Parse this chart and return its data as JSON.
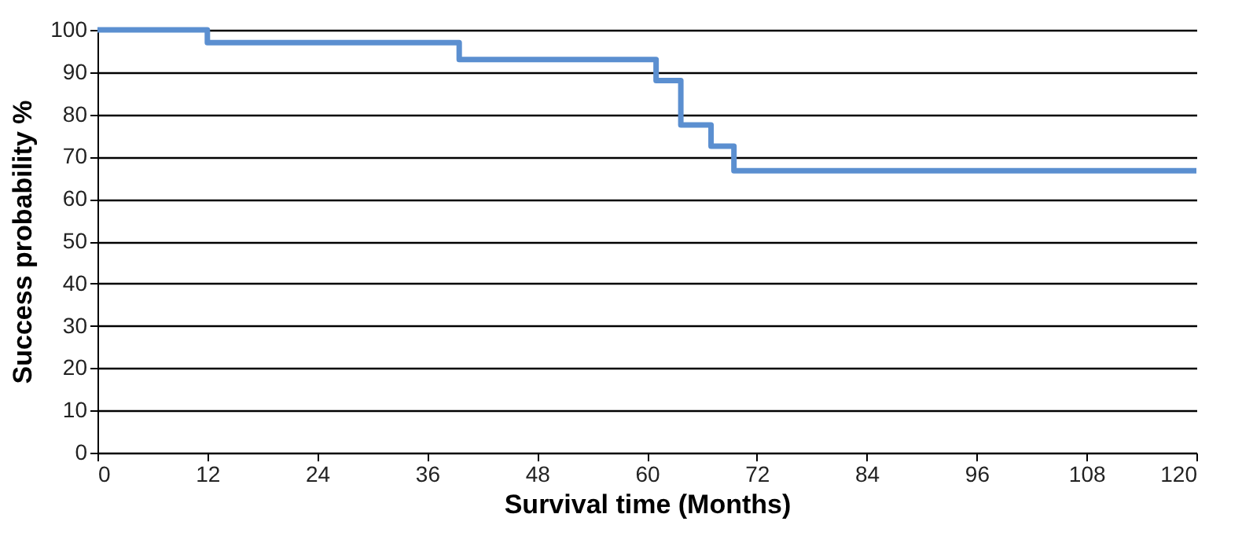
{
  "chart_data": {
    "type": "step",
    "xlabel": "Survival time (Months)",
    "ylabel": "Success probability %",
    "x": [
      0,
      12,
      39.5,
      61,
      63.7,
      67,
      69.5,
      120
    ],
    "series": [
      {
        "color": "#5b8fd0",
        "values": [
          100,
          97,
          93,
          88,
          77.5,
          72.5,
          66.7,
          66.7
        ]
      }
    ],
    "xlim": [
      0,
      120
    ],
    "xticks": [
      0,
      12,
      24,
      36,
      48,
      60,
      72,
      84,
      96,
      108,
      120
    ],
    "ylim": [
      0,
      100
    ],
    "yticks": [
      0,
      10,
      20,
      30,
      40,
      50,
      60,
      70,
      80,
      90,
      100
    ],
    "grid": "y"
  }
}
